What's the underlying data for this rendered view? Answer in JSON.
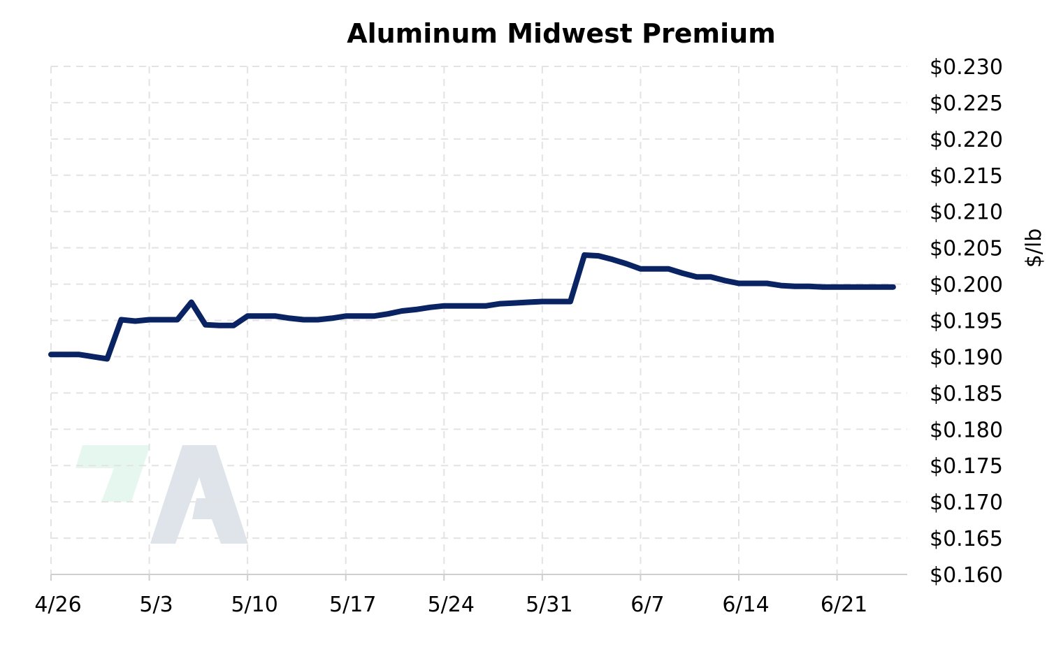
{
  "chart_data": {
    "type": "line",
    "title": "Aluminum Midwest Premium",
    "xlabel": "",
    "ylabel": "$/lb",
    "x_tick_labels": [
      "4/26",
      "5/3",
      "5/10",
      "5/17",
      "5/24",
      "5/31",
      "6/7",
      "6/14",
      "6/21"
    ],
    "y_tick_labels": [
      "$0.160",
      "$0.165",
      "$0.170",
      "$0.175",
      "$0.180",
      "$0.185",
      "$0.190",
      "$0.195",
      "$0.200",
      "$0.205",
      "$0.210",
      "$0.215",
      "$0.220",
      "$0.225",
      "$0.230"
    ],
    "ylim": [
      0.16,
      0.23
    ],
    "xlim": [
      "4/26",
      "6/26"
    ],
    "y_axis_position": "right",
    "grid": true,
    "legend": "none",
    "line_color": "#0a2463",
    "series": [
      {
        "x": [
          "4/26",
          "4/27",
          "4/28",
          "4/29",
          "4/30",
          "5/1",
          "5/2",
          "5/3",
          "5/4",
          "5/5",
          "5/6",
          "5/7",
          "5/8",
          "5/9",
          "5/10",
          "5/11",
          "5/12",
          "5/13",
          "5/14",
          "5/15",
          "5/16",
          "5/17",
          "5/18",
          "5/19",
          "5/20",
          "5/21",
          "5/22",
          "5/23",
          "5/24",
          "5/25",
          "5/26",
          "5/27",
          "5/28",
          "5/29",
          "5/30",
          "5/31",
          "6/1",
          "6/2",
          "6/3",
          "6/4",
          "6/5",
          "6/6",
          "6/7",
          "6/8",
          "6/9",
          "6/10",
          "6/11",
          "6/12",
          "6/13",
          "6/14",
          "6/15",
          "6/16",
          "6/17",
          "6/18",
          "6/19",
          "6/20",
          "6/21",
          "6/22",
          "6/23",
          "6/24",
          "6/25"
        ],
        "values": [
          0.1903,
          0.1903,
          0.1903,
          0.19,
          0.1897,
          0.1951,
          0.1949,
          0.1951,
          0.1951,
          0.1951,
          0.1975,
          0.1944,
          0.1943,
          0.1943,
          0.1956,
          0.1956,
          0.1956,
          0.1953,
          0.1951,
          0.1951,
          0.1953,
          0.1956,
          0.1956,
          0.1956,
          0.1959,
          0.1963,
          0.1965,
          0.1968,
          0.197,
          0.197,
          0.197,
          0.197,
          0.1973,
          0.1974,
          0.1975,
          0.1976,
          0.1976,
          0.1976,
          0.204,
          0.2039,
          0.2034,
          0.2028,
          0.2021,
          0.2021,
          0.2021,
          0.2015,
          0.201,
          0.201,
          0.2005,
          0.2001,
          0.2001,
          0.2001,
          0.1998,
          0.1997,
          0.1997,
          0.1996,
          0.1996,
          0.1996,
          0.1996,
          0.1996,
          0.1996
        ]
      }
    ]
  }
}
